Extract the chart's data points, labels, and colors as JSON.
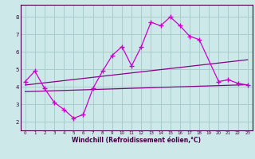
{
  "xlabel": "Windchill (Refroidissement éolien,°C)",
  "bg_color": "#cce8e8",
  "grid_color": "#aacccc",
  "line_color": "#cc00cc",
  "line_color2": "#880088",
  "xlim": [
    -0.5,
    23.5
  ],
  "ylim": [
    1.5,
    8.7
  ],
  "xticks": [
    0,
    1,
    2,
    3,
    4,
    5,
    6,
    7,
    8,
    9,
    10,
    11,
    12,
    13,
    14,
    15,
    16,
    17,
    18,
    19,
    20,
    21,
    22,
    23
  ],
  "yticks": [
    2,
    3,
    4,
    5,
    6,
    7,
    8
  ],
  "curve_x": [
    0,
    1,
    2,
    3,
    4,
    5,
    6,
    7,
    8,
    9,
    10,
    11,
    12,
    13,
    14,
    15,
    16,
    17,
    18,
    20,
    21,
    22,
    23
  ],
  "curve_y": [
    4.3,
    4.9,
    3.9,
    3.1,
    2.7,
    2.2,
    2.4,
    3.9,
    4.9,
    5.8,
    6.3,
    5.2,
    6.3,
    7.7,
    7.5,
    8.0,
    7.5,
    6.9,
    6.7,
    4.3,
    4.4,
    4.2,
    4.1
  ],
  "line1_x": [
    0,
    23
  ],
  "line1_y": [
    4.1,
    5.55
  ],
  "line2_x": [
    0,
    23
  ],
  "line2_y": [
    3.72,
    4.12
  ]
}
